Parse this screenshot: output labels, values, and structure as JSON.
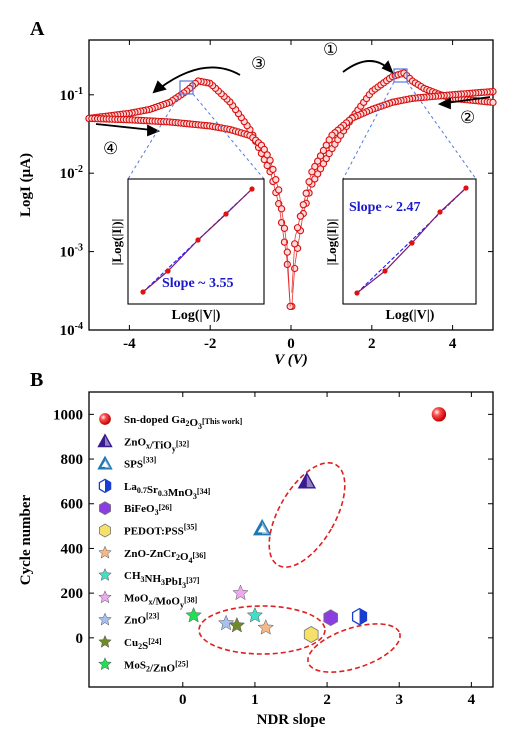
{
  "panel_a": {
    "label": "A",
    "ylabel": "LogI (μA)",
    "xlabel": "V (V)",
    "arrows": [
      "①",
      "②",
      "③",
      "④"
    ],
    "inset_left": {
      "ylabel": "|Log(|I|)|",
      "xlabel": "Log(|V|)",
      "slope": "Slope ~ 3.55"
    },
    "inset_right": {
      "ylabel": "|Log(|I|)|",
      "xlabel": "Log(|V|)",
      "slope": "Slope ~ 2.47"
    }
  },
  "panel_b": {
    "label": "B",
    "ylabel": "Cycle number",
    "xlabel": "NDR slope"
  },
  "chart_data": [
    {
      "type": "scatter",
      "title": "",
      "xlabel": "V (V)",
      "ylabel": "LogI (μA)",
      "xlim": [
        -5,
        5
      ],
      "ylim": [
        0.0001,
        0.5
      ],
      "yscale": "log",
      "xticks": [
        -4,
        -2,
        0,
        2,
        4
      ],
      "yticks": [
        "10^-4",
        "10^-3",
        "10^-2",
        "10^-1"
      ],
      "series": [
        {
          "sweep": "① 0 → +5 V",
          "x": [
            0.02,
            0.1,
            0.3,
            0.5,
            1.0,
            1.5,
            2.0,
            2.5,
            2.8,
            3.0,
            3.3,
            3.7,
            4.0,
            4.5,
            5.0
          ],
          "y": [
            0.0002,
            0.0007,
            0.003,
            0.007,
            0.02,
            0.05,
            0.11,
            0.17,
            0.19,
            0.15,
            0.12,
            0.1,
            0.09,
            0.085,
            0.08
          ]
        },
        {
          "sweep": "② +5 → 0 V",
          "x": [
            5.0,
            4.5,
            4.0,
            3.5,
            3.0,
            2.5,
            2.0,
            1.5,
            1.0,
            0.5,
            0.1,
            0.02
          ],
          "y": [
            0.11,
            0.105,
            0.1,
            0.095,
            0.09,
            0.08,
            0.065,
            0.05,
            0.03,
            0.01,
            0.0015,
            0.0003
          ]
        },
        {
          "sweep": "③ 0 → −5 V",
          "x": [
            -0.02,
            -0.1,
            -0.3,
            -0.5,
            -1.0,
            -1.5,
            -2.0,
            -2.3,
            -2.6,
            -3.0,
            -3.5,
            -4.0,
            -5.0
          ],
          "y": [
            0.0002,
            0.0008,
            0.004,
            0.01,
            0.035,
            0.08,
            0.14,
            0.15,
            0.11,
            0.08,
            0.065,
            0.058,
            0.05
          ]
        },
        {
          "sweep": "④ −5 → 0 V",
          "x": [
            -5.0,
            -4.0,
            -3.0,
            -2.0,
            -1.5,
            -1.0,
            -0.7,
            -0.5,
            -0.3,
            -0.1,
            -0.02
          ],
          "y": [
            0.05,
            0.048,
            0.045,
            0.04,
            0.036,
            0.03,
            0.022,
            0.014,
            0.006,
            0.0012,
            0.0002
          ]
        }
      ]
    },
    {
      "type": "scatter",
      "title": "",
      "xlabel": "NDR slope",
      "ylabel": "Cycle number",
      "xlim": [
        -1.3,
        4.3
      ],
      "ylim": [
        -220,
        1100
      ],
      "xticks": [
        0,
        1,
        2,
        3,
        4
      ],
      "yticks": [
        0,
        200,
        400,
        600,
        800,
        1000
      ],
      "legend_position": "top-left",
      "points": [
        {
          "label": "Sn-doped Ga2O3 [This work]",
          "x": 3.55,
          "y": 1000,
          "marker": "sphere",
          "color": "#e01010"
        },
        {
          "label": "ZnOx/TiOy [32]",
          "x": 1.72,
          "y": 700,
          "marker": "triangle",
          "color": "#3a1a90"
        },
        {
          "label": "SPS [33]",
          "x": 1.1,
          "y": 490,
          "marker": "triangle",
          "color": "#1f77b4"
        },
        {
          "label": "La0.7Sr0.3MnO3 [34]",
          "x": 2.45,
          "y": 95,
          "marker": "half-hexagon",
          "color": "#1a3fd0"
        },
        {
          "label": "BiFeO3 [26]",
          "x": 2.05,
          "y": 90,
          "marker": "hexagon",
          "color": "#8a3ee0"
        },
        {
          "label": "PEDOT:PSS [35]",
          "x": 1.78,
          "y": 15,
          "marker": "hexagon",
          "color": "#f5e06a"
        },
        {
          "label": "ZnO-ZnCr2O4 [36]",
          "x": 1.15,
          "y": 45,
          "marker": "star",
          "color": "#f5b88a"
        },
        {
          "label": "CH3NH3PbI3 [37]",
          "x": 1.0,
          "y": 100,
          "marker": "star",
          "color": "#40e0c8"
        },
        {
          "label": "MoOx/MoOy [38]",
          "x": 0.8,
          "y": 200,
          "marker": "star",
          "color": "#f0a8f0"
        },
        {
          "label": "ZnO [23]",
          "x": 0.6,
          "y": 65,
          "marker": "star",
          "color": "#a8c0ee"
        },
        {
          "label": "Cu2S [24]",
          "x": 0.75,
          "y": 55,
          "marker": "star",
          "color": "#6e8a2a"
        },
        {
          "label": "MoS2/ZnO [25]",
          "x": 0.15,
          "y": 100,
          "marker": "star",
          "color": "#22dd55"
        }
      ]
    }
  ]
}
